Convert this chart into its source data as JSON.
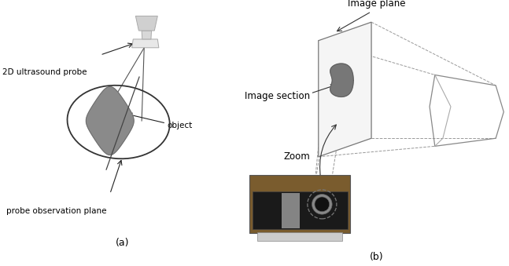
{
  "fig_width": 6.47,
  "fig_height": 3.39,
  "bg_color": "#ffffff",
  "label_a": "(a)",
  "label_b": "(b)",
  "text_color": "#000000",
  "gray_fill": "#888888",
  "annotation_fontsize": 7.5,
  "subfig_label_fontsize": 9,
  "texts_a": {
    "probe_label": "2D ultrasound probe",
    "object_label": "object",
    "plane_label": "probe observation plane"
  },
  "texts_b": {
    "image_plane_label": "Image plane",
    "image_section_label": "Image section",
    "zoom_label": "Zoom"
  }
}
